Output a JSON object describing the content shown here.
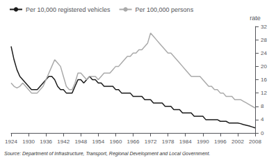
{
  "chart_data": {
    "type": "line",
    "ylabel": "rate",
    "annotations": [
      "Source: Department of Infrastructure, Transport, Regional Development and Local Government."
    ],
    "x": [
      1924,
      1925,
      1926,
      1927,
      1928,
      1929,
      1930,
      1931,
      1932,
      1933,
      1934,
      1935,
      1936,
      1937,
      1938,
      1939,
      1940,
      1941,
      1942,
      1943,
      1944,
      1945,
      1946,
      1947,
      1948,
      1949,
      1950,
      1951,
      1952,
      1953,
      1954,
      1955,
      1956,
      1957,
      1958,
      1959,
      1960,
      1961,
      1962,
      1963,
      1964,
      1965,
      1966,
      1967,
      1968,
      1969,
      1970,
      1971,
      1972,
      1973,
      1974,
      1975,
      1976,
      1977,
      1978,
      1979,
      1980,
      1981,
      1982,
      1983,
      1984,
      1985,
      1986,
      1987,
      1988,
      1989,
      1990,
      1991,
      1992,
      1993,
      1994,
      1995,
      1996,
      1997,
      1998,
      1999,
      2000,
      2001,
      2002,
      2003,
      2004,
      2005,
      2006,
      2007,
      2008
    ],
    "series": [
      {
        "name": "Per 10,000 registered vehicles",
        "color": "#1a1a1a",
        "values": [
          26,
          22,
          19,
          17,
          16,
          15,
          14,
          13,
          13,
          13,
          14,
          15,
          16,
          17,
          17,
          16,
          14,
          13,
          13,
          12,
          12,
          12,
          14,
          16,
          16,
          15,
          16,
          17,
          16,
          16,
          15,
          15,
          14,
          14,
          14,
          14,
          13,
          13,
          12,
          12,
          12,
          12,
          11,
          11,
          11,
          11,
          10,
          10,
          10,
          9,
          9,
          9,
          9,
          8,
          8,
          8,
          7,
          7,
          7,
          6,
          6,
          6,
          6,
          5,
          5,
          5,
          5,
          4,
          4,
          4,
          4,
          4,
          3.5,
          3.5,
          3.5,
          3,
          3,
          3,
          3,
          2.8,
          2.5,
          2.3,
          2.1,
          1.8,
          1.5
        ]
      },
      {
        "name": "Per 100,000 persons",
        "color": "#aaaaaa",
        "values": [
          15,
          14,
          13.5,
          14,
          15,
          14,
          13,
          12,
          12,
          12,
          13,
          14,
          16,
          18,
          20,
          22,
          21,
          20,
          17,
          14,
          13,
          13,
          15,
          18,
          18,
          17,
          16,
          17,
          17,
          17,
          16,
          17,
          18,
          18,
          18,
          19,
          20,
          20,
          21,
          22,
          23,
          23,
          24,
          24,
          25,
          25,
          26,
          27,
          30,
          29,
          28,
          27,
          26,
          25,
          24,
          24,
          23,
          22,
          21,
          20,
          19,
          18,
          17,
          17,
          17,
          17,
          16,
          15,
          14,
          14,
          13,
          13,
          12,
          12,
          11,
          11,
          11,
          10,
          10,
          10,
          9.5,
          9,
          8.5,
          8,
          7.5
        ]
      }
    ],
    "xlim": [
      1924,
      2008
    ],
    "xticks": [
      1924,
      1930,
      1936,
      1942,
      1948,
      1954,
      1960,
      1966,
      1972,
      1978,
      1984,
      1990,
      1996,
      2002,
      2008
    ],
    "ylim": [
      0,
      32
    ],
    "yticks": [
      0,
      4,
      8,
      12,
      16,
      20,
      24,
      28,
      32
    ],
    "grid": false,
    "legend": "upper left"
  }
}
